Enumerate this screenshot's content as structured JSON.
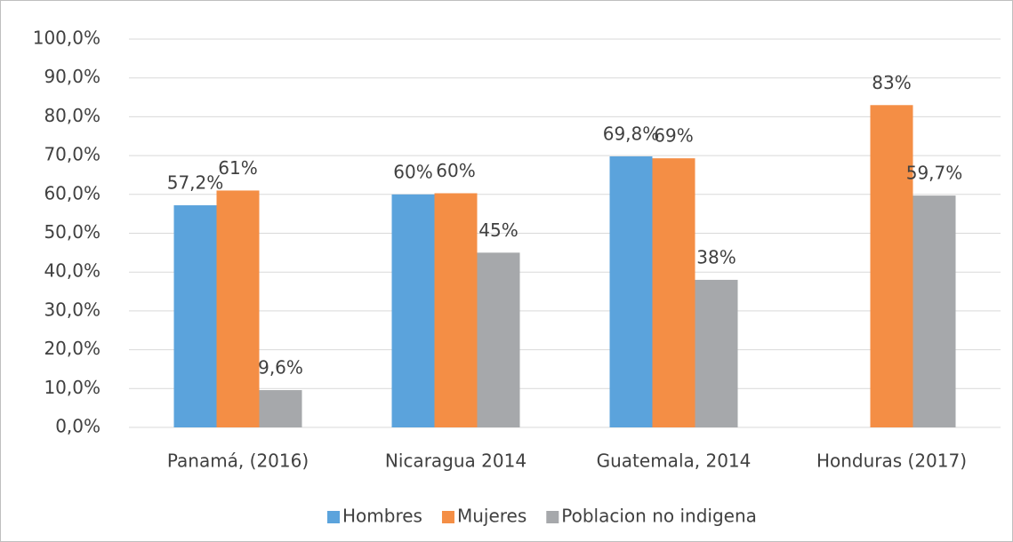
{
  "chart_data": {
    "type": "bar",
    "categories": [
      "Panamá, (2016)",
      "Nicaragua 2014",
      "Guatemala, 2014",
      "Honduras (2017)"
    ],
    "series": [
      {
        "name": "Hombres",
        "color": "#5ba3dc",
        "values": [
          57.2,
          60,
          69.8,
          null
        ],
        "value_labels": [
          "57,2%",
          "60%",
          "69,8%",
          null
        ]
      },
      {
        "name": "Mujeres",
        "color": "#f48e45",
        "values": [
          61,
          60.3,
          69.3,
          83
        ],
        "value_labels": [
          "61%",
          "60%",
          "69%",
          "83%"
        ]
      },
      {
        "name": "Poblacion no indigena",
        "color": "#a6a8ab",
        "values": [
          9.6,
          45,
          38,
          59.7
        ],
        "value_labels": [
          "9,6%",
          "45%",
          "38%",
          "59,7%"
        ]
      }
    ],
    "ylim": [
      0,
      100
    ],
    "yticks": [
      {
        "value": 0,
        "label": "0,0%"
      },
      {
        "value": 10,
        "label": "10,0%"
      },
      {
        "value": 20,
        "label": "20,0%"
      },
      {
        "value": 30,
        "label": "30,0%"
      },
      {
        "value": 40,
        "label": "40,0%"
      },
      {
        "value": 50,
        "label": "50,0%"
      },
      {
        "value": 60,
        "label": "60,0%"
      },
      {
        "value": 70,
        "label": "70,0%"
      },
      {
        "value": 80,
        "label": "80,0%"
      },
      {
        "value": 90,
        "label": "90,0%"
      },
      {
        "value": 100,
        "label": "100,0%"
      }
    ],
    "grid": true,
    "legend": "bottom"
  }
}
